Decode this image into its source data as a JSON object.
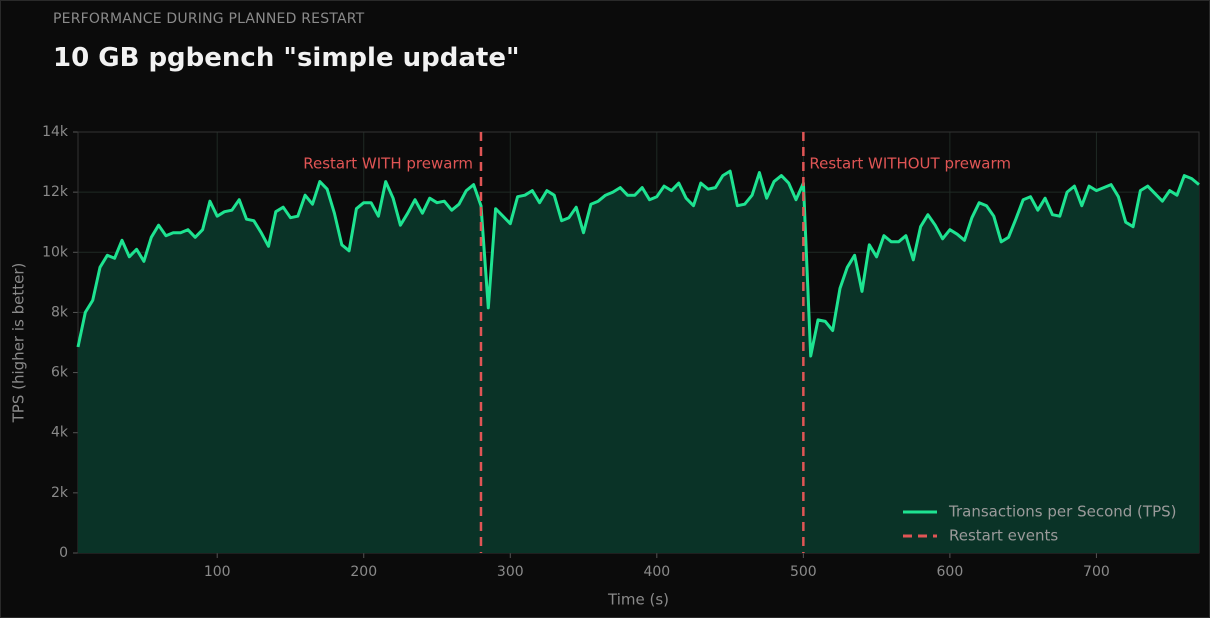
{
  "subtitle": "PERFORMANCE DURING PLANNED RESTART",
  "chart_data": {
    "type": "line",
    "title": "10 GB pgbench \"simple update\"",
    "x_label": "Time (s)",
    "y_label": "TPS (higher is better)",
    "x": [
      5,
      10,
      15,
      20,
      25,
      30,
      35,
      40,
      45,
      50,
      55,
      60,
      65,
      70,
      75,
      80,
      85,
      90,
      95,
      100,
      105,
      110,
      115,
      120,
      125,
      130,
      135,
      140,
      145,
      150,
      155,
      160,
      165,
      170,
      175,
      180,
      185,
      190,
      195,
      200,
      205,
      210,
      215,
      220,
      225,
      230,
      235,
      240,
      245,
      250,
      255,
      260,
      265,
      270,
      275,
      280,
      285,
      290,
      295,
      300,
      305,
      310,
      315,
      320,
      325,
      330,
      335,
      340,
      345,
      350,
      355,
      360,
      365,
      370,
      375,
      380,
      385,
      390,
      395,
      400,
      405,
      410,
      415,
      420,
      425,
      430,
      435,
      440,
      445,
      450,
      455,
      460,
      465,
      470,
      475,
      480,
      485,
      490,
      495,
      500,
      505,
      510,
      515,
      520,
      525,
      530,
      535,
      540,
      545,
      550,
      555,
      560,
      565,
      570,
      575,
      580,
      585,
      590,
      595,
      600,
      605,
      610,
      615,
      620,
      625,
      630,
      635,
      640,
      645,
      650,
      655,
      660,
      665,
      670,
      675,
      680,
      685,
      690,
      695,
      700,
      705,
      710,
      715,
      720,
      725,
      730,
      735,
      740,
      745,
      750,
      755,
      760,
      765,
      770
    ],
    "series": [
      {
        "name": "Transactions per Second (TPS)",
        "color": "#1ee391",
        "fill": "#0a3327",
        "values": [
          6850,
          8000,
          8400,
          9500,
          9900,
          9800,
          10400,
          9850,
          10100,
          9700,
          10500,
          10900,
          10550,
          10650,
          10650,
          10750,
          10500,
          10750,
          11700,
          11200,
          11350,
          11400,
          11750,
          11100,
          11050,
          10650,
          10200,
          11350,
          11500,
          11150,
          11200,
          11900,
          11600,
          12350,
          12100,
          11300,
          10250,
          10050,
          11450,
          11650,
          11650,
          11200,
          12350,
          11800,
          10900,
          11300,
          11750,
          11300,
          11800,
          11650,
          11700,
          11400,
          11600,
          12050,
          12250,
          11550,
          8150,
          11450,
          11200,
          10950,
          11850,
          11900,
          12050,
          11650,
          12050,
          11900,
          11050,
          11150,
          11500,
          10650,
          11600,
          11700,
          11900,
          12000,
          12150,
          11900,
          11900,
          12150,
          11750,
          11850,
          12200,
          12050,
          12300,
          11800,
          11550,
          12300,
          12100,
          12150,
          12550,
          12700,
          11550,
          11600,
          11900,
          12650,
          11800,
          12350,
          12550,
          12300,
          11750,
          12300,
          6550,
          7750,
          7700,
          7400,
          8800,
          9500,
          9900,
          8700,
          10250,
          9850,
          10550,
          10350,
          10350,
          10550,
          9750,
          10850,
          11250,
          10900,
          10450,
          10750,
          10600,
          10400,
          11150,
          11650,
          11550,
          11200,
          10350,
          10500,
          11100,
          11750,
          11850,
          11400,
          11800,
          11250,
          11200,
          12000,
          12200,
          11550,
          12200,
          12050,
          12150,
          12250,
          11850,
          11000,
          10850,
          12050,
          12200,
          11950,
          11700,
          12050,
          11900,
          12550,
          12450,
          12250
        ]
      }
    ],
    "restart_events": {
      "name": "Restart events",
      "color": "#e05555",
      "x": [
        280,
        500
      ],
      "labels": [
        "Restart WITH prewarm",
        "Restart WITHOUT prewarm"
      ]
    },
    "xlim": [
      5,
      770
    ],
    "ylim": [
      0,
      14000
    ],
    "xticks": [
      100,
      200,
      300,
      400,
      500,
      600,
      700
    ],
    "yticks": [
      0,
      {
        "value": 2000,
        "label": "2k"
      },
      {
        "value": 4000,
        "label": "4k"
      },
      {
        "value": 6000,
        "label": "6k"
      },
      {
        "value": 8000,
        "label": "8k"
      },
      {
        "value": 10000,
        "label": "10k"
      },
      {
        "value": 12000,
        "label": "12k"
      },
      {
        "value": 14000,
        "label": "14k"
      }
    ],
    "grid": true,
    "legend": "lower right"
  }
}
